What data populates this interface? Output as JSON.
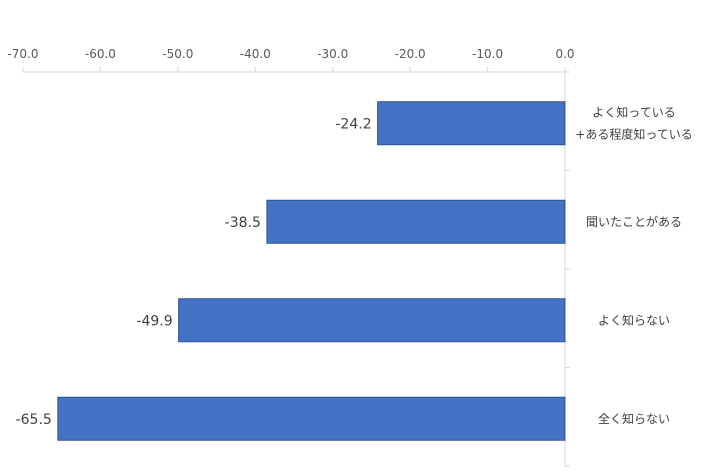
{
  "chart_data": {
    "type": "bar",
    "orientation": "horizontal",
    "categories": [
      [
        "よく知っている",
        "+ある程度知っている"
      ],
      [
        "聞いたことがある"
      ],
      [
        "よく知らない"
      ],
      [
        "全く知らない"
      ]
    ],
    "values": [
      -24.2,
      -38.5,
      -49.9,
      -65.5
    ],
    "value_labels": [
      "-24.2",
      "-38.5",
      "-49.9",
      "-65.5"
    ],
    "x_ticks": [
      "-70.0",
      "-60.0",
      "-50.0",
      "-40.0",
      "-30.0",
      "-20.0",
      "-10.0",
      "0.0"
    ],
    "xlim": [
      -70,
      0
    ],
    "x_axis_position": "top",
    "category_labels_position": "right",
    "grid": false,
    "legend": false,
    "colors": {
      "bar": "#4472C4",
      "bar_edge": "#2F528F",
      "axis": "#D9D9D9"
    }
  }
}
